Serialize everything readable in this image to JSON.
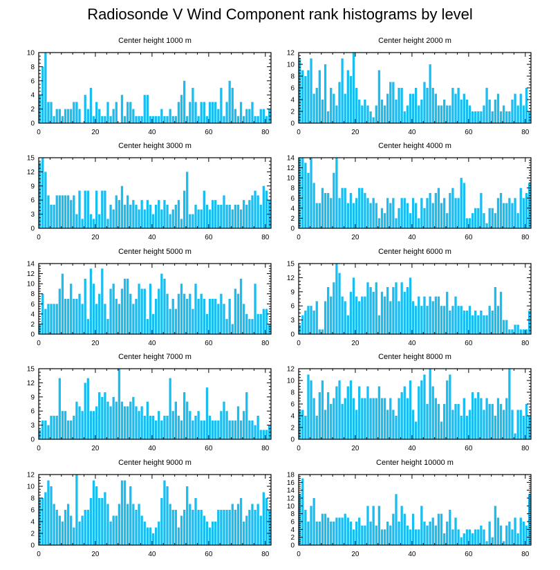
{
  "title": "Radiosonde V Wind Component rank histograms by level",
  "chart_data": [
    {
      "type": "bar",
      "title": "Center height 1000 m",
      "xlim": [
        0,
        82
      ],
      "ylim": [
        0,
        10
      ],
      "yticks": [
        0,
        2,
        4,
        6,
        8,
        10
      ],
      "xticks": [
        0,
        20,
        40,
        60,
        80
      ],
      "values": [
        4,
        8,
        10,
        3,
        3,
        1,
        2,
        2,
        1,
        2,
        2,
        2,
        3,
        3,
        2,
        0,
        4,
        2,
        5,
        1,
        3,
        2,
        1,
        1,
        3,
        1,
        2,
        3,
        0,
        4,
        1,
        3,
        3,
        2,
        1,
        1,
        1,
        4,
        4,
        1,
        1,
        1,
        1,
        2,
        1,
        1,
        2,
        1,
        1,
        3,
        4,
        6,
        1,
        3,
        5,
        3,
        1,
        3,
        3,
        1,
        3,
        3,
        3,
        2,
        5,
        1,
        3,
        6,
        5,
        2,
        1,
        3,
        1,
        2,
        2,
        3,
        1,
        1,
        2,
        2,
        1,
        2
      ]
    },
    {
      "type": "bar",
      "title": "Center height 2000 m",
      "xlim": [
        0,
        82
      ],
      "ylim": [
        0,
        12
      ],
      "yticks": [
        0,
        2,
        4,
        6,
        8,
        10,
        12
      ],
      "xticks": [
        0,
        20,
        40,
        60,
        80
      ],
      "values": [
        11,
        9,
        8,
        9,
        11,
        5,
        6,
        9,
        4,
        10,
        2,
        6,
        5,
        3,
        7,
        11,
        5,
        9,
        8,
        12,
        6,
        4,
        3,
        4,
        3,
        2,
        1,
        3,
        9,
        4,
        3,
        5,
        7,
        7,
        4,
        6,
        6,
        2,
        3,
        5,
        5,
        6,
        3,
        4,
        7,
        6,
        10,
        6,
        5,
        3,
        3,
        4,
        3,
        3,
        6,
        5,
        6,
        4,
        5,
        4,
        3,
        2,
        2,
        2,
        2,
        3,
        6,
        4,
        2,
        4,
        5,
        2,
        3,
        2,
        2,
        4,
        5,
        3,
        5,
        3,
        6,
        2
      ]
    },
    {
      "type": "bar",
      "title": "Center height 3000 m",
      "xlim": [
        0,
        82
      ],
      "ylim": [
        0,
        15
      ],
      "yticks": [
        0,
        3,
        6,
        9,
        12,
        15
      ],
      "xticks": [
        0,
        20,
        40,
        60,
        80
      ],
      "values": [
        14,
        15,
        12,
        7,
        5,
        5,
        7,
        7,
        7,
        7,
        7,
        6,
        7,
        3,
        8,
        2,
        8,
        8,
        3,
        2,
        8,
        3,
        8,
        8,
        2,
        5,
        4,
        7,
        6,
        9,
        5,
        7,
        5,
        6,
        5,
        4,
        6,
        4,
        6,
        5,
        3,
        5,
        6,
        4,
        6,
        5,
        3,
        4,
        5,
        6,
        2,
        8,
        12,
        3,
        3,
        5,
        4,
        4,
        8,
        5,
        4,
        6,
        6,
        5,
        5,
        7,
        5,
        5,
        4,
        5,
        5,
        4,
        6,
        5,
        6,
        7,
        8,
        7,
        5,
        9,
        8,
        6
      ]
    },
    {
      "type": "bar",
      "title": "Center height 4000 m",
      "xlim": [
        0,
        82
      ],
      "ylim": [
        0,
        14
      ],
      "yticks": [
        0,
        2,
        4,
        6,
        8,
        10,
        12,
        14
      ],
      "xticks": [
        0,
        20,
        40,
        60,
        80
      ],
      "values": [
        14,
        14,
        13,
        11,
        14,
        9,
        5,
        5,
        8,
        7,
        7,
        6,
        11,
        14,
        6,
        8,
        8,
        5,
        7,
        5,
        6,
        8,
        8,
        7,
        6,
        5,
        6,
        5,
        2,
        4,
        3,
        6,
        5,
        6,
        2,
        4,
        6,
        6,
        5,
        3,
        6,
        5,
        2,
        6,
        4,
        6,
        7,
        5,
        7,
        8,
        5,
        6,
        3,
        7,
        8,
        6,
        6,
        10,
        9,
        2,
        2,
        3,
        4,
        4,
        7,
        3,
        1,
        4,
        4,
        3,
        6,
        7,
        5,
        5,
        6,
        5,
        6,
        3,
        8,
        6,
        7,
        9
      ]
    },
    {
      "type": "bar",
      "title": "Center height 5000 m",
      "xlim": [
        0,
        82
      ],
      "ylim": [
        0,
        14
      ],
      "yticks": [
        0,
        2,
        4,
        6,
        8,
        10,
        12,
        14
      ],
      "xticks": [
        0,
        20,
        40,
        60,
        80
      ],
      "values": [
        2,
        8,
        5,
        6,
        6,
        6,
        6,
        9,
        12,
        7,
        7,
        10,
        7,
        7,
        8,
        6,
        11,
        3,
        13,
        10,
        6,
        8,
        13,
        6,
        3,
        9,
        10,
        7,
        6,
        9,
        11,
        11,
        8,
        6,
        7,
        10,
        9,
        9,
        3,
        10,
        4,
        7,
        9,
        12,
        11,
        8,
        5,
        7,
        5,
        8,
        10,
        8,
        7,
        8,
        5,
        10,
        7,
        8,
        7,
        4,
        7,
        7,
        7,
        6,
        8,
        6,
        3,
        7,
        2,
        9,
        8,
        11,
        6,
        4,
        3,
        3,
        10,
        4,
        4,
        5,
        5,
        2
      ]
    },
    {
      "type": "bar",
      "title": "Center height 6000 m",
      "xlim": [
        0,
        82
      ],
      "ylim": [
        0,
        15
      ],
      "yticks": [
        0,
        3,
        6,
        9,
        12,
        15
      ],
      "xticks": [
        0,
        20,
        40,
        60,
        80
      ],
      "values": [
        2,
        4,
        5,
        6,
        6,
        5,
        7,
        1,
        1,
        7,
        10,
        8,
        11,
        15,
        13,
        8,
        7,
        4,
        9,
        12,
        8,
        7,
        8,
        8,
        11,
        10,
        9,
        11,
        4,
        9,
        8,
        10,
        7,
        10,
        11,
        7,
        11,
        9,
        10,
        12,
        7,
        6,
        8,
        6,
        8,
        6,
        8,
        7,
        8,
        8,
        6,
        6,
        9,
        5,
        6,
        8,
        6,
        6,
        5,
        5,
        6,
        4,
        5,
        4,
        5,
        4,
        4,
        6,
        5,
        10,
        6,
        9,
        3,
        3,
        1,
        1,
        2,
        2,
        1,
        1,
        1,
        5
      ]
    },
    {
      "type": "bar",
      "title": "Center height 7000 m",
      "xlim": [
        0,
        82
      ],
      "ylim": [
        0,
        15
      ],
      "yticks": [
        0,
        3,
        6,
        9,
        12,
        15
      ],
      "xticks": [
        0,
        20,
        40,
        60,
        80
      ],
      "values": [
        2,
        4,
        4,
        3,
        5,
        5,
        5,
        13,
        6,
        6,
        4,
        4,
        5,
        8,
        7,
        6,
        12,
        13,
        6,
        6,
        7,
        10,
        9,
        10,
        8,
        7,
        9,
        8,
        15,
        8,
        7,
        7,
        8,
        9,
        7,
        6,
        7,
        5,
        8,
        5,
        5,
        4,
        6,
        4,
        5,
        5,
        13,
        6,
        8,
        5,
        4,
        10,
        8,
        6,
        4,
        5,
        6,
        4,
        4,
        11,
        5,
        4,
        4,
        4,
        6,
        8,
        6,
        4,
        4,
        4,
        7,
        4,
        6,
        10,
        4,
        4,
        3,
        5,
        2,
        2,
        2,
        3
      ]
    },
    {
      "type": "bar",
      "title": "Center height 8000 m",
      "xlim": [
        0,
        82
      ],
      "ylim": [
        0,
        12
      ],
      "yticks": [
        0,
        2,
        4,
        6,
        8,
        10,
        12
      ],
      "xticks": [
        0,
        20,
        40,
        60,
        80
      ],
      "values": [
        5,
        5,
        4,
        11,
        10,
        7,
        4,
        8,
        10,
        5,
        8,
        6,
        7,
        9,
        10,
        6,
        7,
        9,
        10,
        7,
        5,
        9,
        7,
        7,
        9,
        7,
        7,
        7,
        9,
        7,
        7,
        5,
        7,
        5,
        4,
        7,
        8,
        9,
        7,
        10,
        5,
        3,
        9,
        10,
        11,
        6,
        12,
        9,
        7,
        6,
        3,
        6,
        10,
        11,
        5,
        6,
        6,
        4,
        7,
        4,
        5,
        8,
        7,
        8,
        7,
        5,
        7,
        6,
        6,
        4,
        7,
        6,
        5,
        7,
        12,
        5,
        1,
        5,
        5,
        4,
        6,
        4
      ]
    },
    {
      "type": "bar",
      "title": "Center height 9000 m",
      "xlim": [
        0,
        82
      ],
      "ylim": [
        0,
        12
      ],
      "yticks": [
        0,
        2,
        4,
        6,
        8,
        10,
        12
      ],
      "xticks": [
        0,
        20,
        40,
        60,
        80
      ],
      "values": [
        8,
        8,
        9,
        11,
        10,
        7,
        6,
        5,
        4,
        6,
        7,
        5,
        3,
        12,
        4,
        5,
        6,
        6,
        8,
        11,
        10,
        8,
        8,
        9,
        7,
        4,
        5,
        5,
        7,
        11,
        11,
        7,
        10,
        7,
        6,
        7,
        5,
        4,
        3,
        3,
        2,
        3,
        4,
        8,
        11,
        10,
        7,
        6,
        6,
        3,
        5,
        6,
        10,
        7,
        6,
        8,
        6,
        6,
        5,
        4,
        3,
        4,
        4,
        6,
        6,
        6,
        6,
        6,
        7,
        6,
        7,
        8,
        4,
        5,
        6,
        7,
        6,
        7,
        5,
        9,
        8,
        6
      ]
    },
    {
      "type": "bar",
      "title": "Center height 10000 m",
      "xlim": [
        0,
        82
      ],
      "ylim": [
        0,
        18
      ],
      "yticks": [
        0,
        2,
        4,
        6,
        8,
        10,
        12,
        14,
        16,
        18
      ],
      "xticks": [
        0,
        20,
        40,
        60,
        80
      ],
      "values": [
        13,
        17,
        9,
        6,
        10,
        12,
        6,
        6,
        8,
        8,
        7,
        6,
        6,
        7,
        7,
        7,
        8,
        7,
        6,
        4,
        6,
        7,
        5,
        5,
        10,
        6,
        10,
        5,
        10,
        4,
        4,
        6,
        5,
        8,
        13,
        6,
        10,
        8,
        5,
        4,
        8,
        4,
        4,
        10,
        6,
        5,
        6,
        7,
        5,
        8,
        8,
        3,
        6,
        9,
        4,
        7,
        4,
        2,
        3,
        4,
        4,
        3,
        4,
        4,
        5,
        4,
        1,
        6,
        2,
        10,
        7,
        5,
        1,
        5,
        6,
        4,
        7,
        3,
        7,
        6,
        5,
        13
      ]
    }
  ]
}
